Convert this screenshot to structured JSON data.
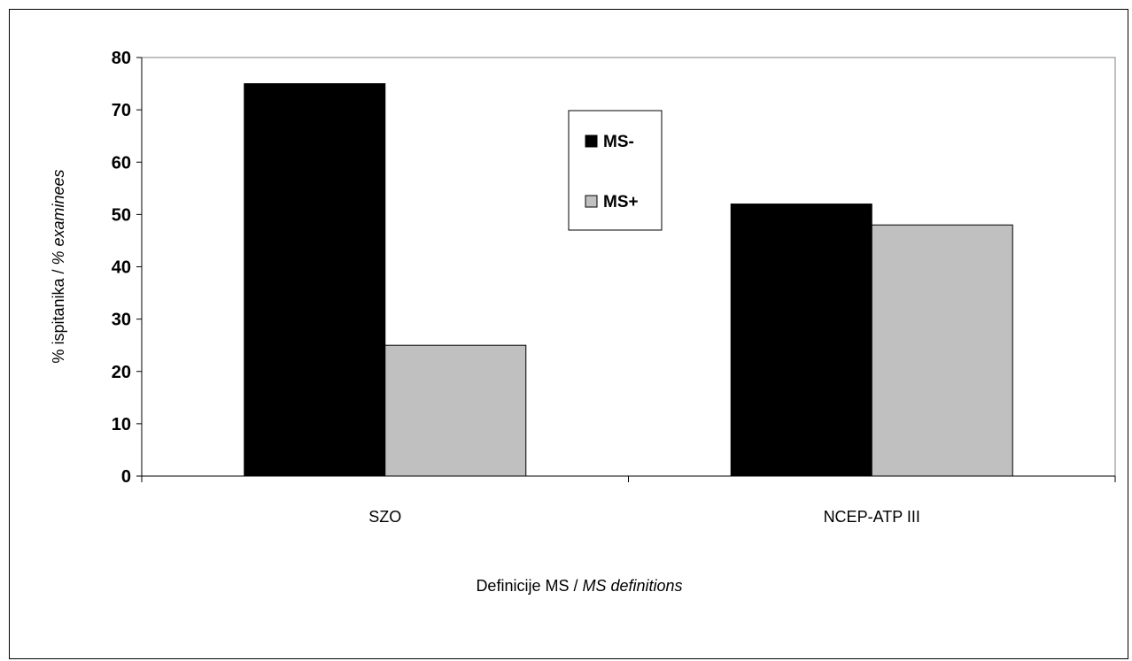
{
  "chart_data": {
    "type": "bar",
    "categories": [
      "SZO",
      "NCEP-ATP III"
    ],
    "series": [
      {
        "name": "MS-",
        "values": [
          75,
          52
        ],
        "color": "#000000"
      },
      {
        "name": "MS+",
        "values": [
          25,
          48
        ],
        "color": "#c0c0c0"
      }
    ],
    "ylim": [
      0,
      80
    ],
    "yticks": [
      0,
      10,
      20,
      30,
      40,
      50,
      60,
      70,
      80
    ],
    "ylabel": {
      "plain": "% ispitanika / ",
      "italic": "% examinees"
    },
    "xlabel": {
      "plain": "Definicije MS / ",
      "italic": "MS definitions"
    },
    "grid": false,
    "legend_position": "top-center"
  }
}
